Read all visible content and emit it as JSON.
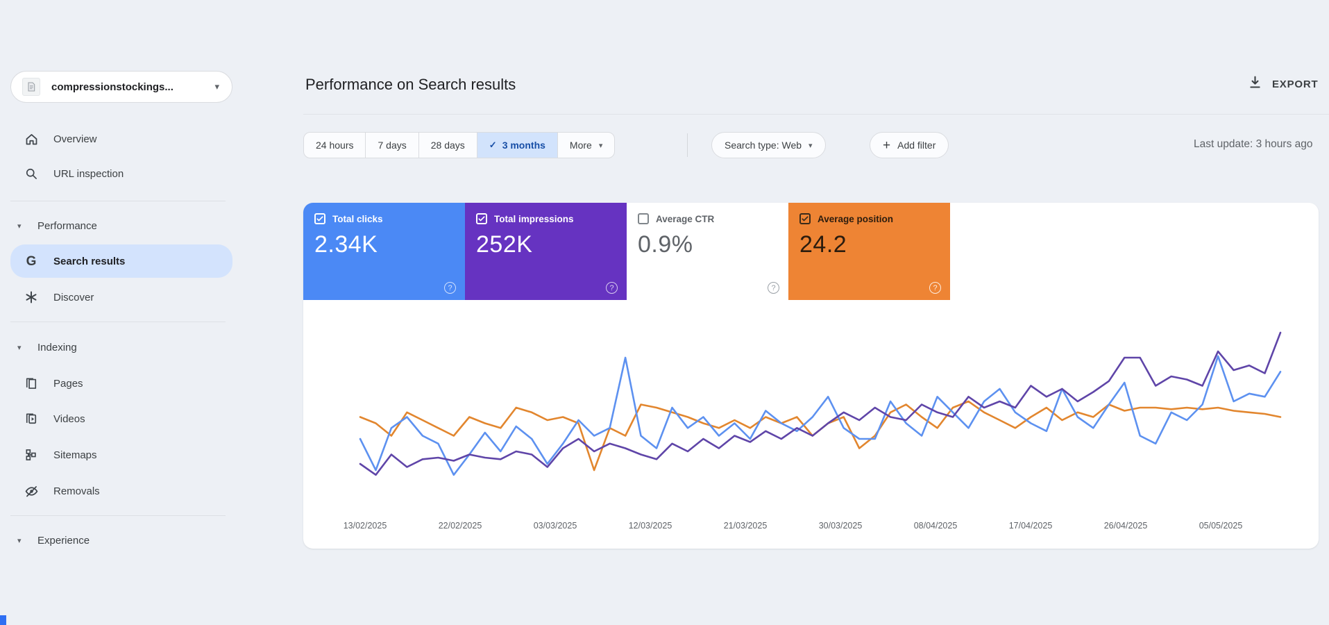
{
  "icons": {
    "caret_down": "▾",
    "check": "✓",
    "plus": "+",
    "help": "?"
  },
  "sidebar": {
    "property_label": "compressionstockings...",
    "overview": "Overview",
    "url_inspection": "URL inspection",
    "performance_header": "Performance",
    "search_results": "Search results",
    "g_glyph": "G",
    "discover": "Discover",
    "indexing_header": "Indexing",
    "pages": "Pages",
    "videos": "Videos",
    "sitemaps": "Sitemaps",
    "removals": "Removals",
    "experience_header": "Experience"
  },
  "header": {
    "title": "Performance on Search results",
    "export_label": "EXPORT",
    "last_update": "Last update: 3 hours ago"
  },
  "filters": {
    "range_24h": "24 hours",
    "range_7d": "7 days",
    "range_28d": "28 days",
    "range_3m": "3 months",
    "selected_range": "3 months",
    "more": "More",
    "search_type": "Search type: Web",
    "add_filter": "Add filter"
  },
  "metrics": [
    {
      "label": "Total clicks",
      "value": "2.34K",
      "checked": true,
      "bg": "#4b89f5",
      "fg": "#ffffff",
      "checkbox_color": "#ffffff",
      "help_color": "rgba(255,255,255,0.75)"
    },
    {
      "label": "Total impressions",
      "value": "252K",
      "checked": true,
      "bg": "#6633c1",
      "fg": "#ffffff",
      "checkbox_color": "#ffffff",
      "help_color": "rgba(255,255,255,0.75)"
    },
    {
      "label": "Average CTR",
      "value": "0.9%",
      "checked": false,
      "bg": "#ffffff",
      "fg": "#5f6368",
      "checkbox_color": "#80868b",
      "help_color": "#9aa0a6"
    },
    {
      "label": "Average position",
      "value": "24.2",
      "checked": true,
      "bg": "#ee8434",
      "fg": "#2b1c0e",
      "checkbox_color": "#3a2a1a",
      "help_color": "rgba(255,255,255,0.85)"
    }
  ],
  "chart_data": {
    "type": "line",
    "title": "Performance on Search results (3 months, daily points)",
    "x_tick_labels": [
      "13/02/2025",
      "22/02/2025",
      "03/03/2025",
      "12/03/2025",
      "21/03/2025",
      "30/03/2025",
      "08/04/2025",
      "17/04/2025",
      "26/04/2025",
      "05/05/2025"
    ],
    "x_range_note": "daily data from ~12/02/2025 to ~11/05/2025, ticks every 9 days",
    "y_axis_note": "no y-axis shown in chart; series values are relative units 0-100 estimated from pixel positions",
    "legend_note": "metric tiles above chart act as legend; Average CTR unchecked so no CTR line",
    "grid": false,
    "series": [
      {
        "name": "Total clicks",
        "total": "2.34K",
        "color": "#5d91f0",
        "values": [
          28,
          8,
          35,
          42,
          30,
          25,
          5,
          18,
          32,
          20,
          36,
          28,
          12,
          25,
          40,
          30,
          35,
          80,
          30,
          22,
          48,
          35,
          42,
          30,
          38,
          28,
          46,
          38,
          33,
          42,
          55,
          35,
          28,
          28,
          52,
          38,
          30,
          55,
          45,
          35,
          52,
          60,
          45,
          38,
          33,
          60,
          42,
          35,
          50,
          64,
          30,
          25,
          45,
          40,
          50,
          81,
          52,
          57,
          55,
          71
        ]
      },
      {
        "name": "Total impressions",
        "total": "252K",
        "color": "#5f45a8",
        "values": [
          12,
          5,
          18,
          10,
          15,
          16,
          14,
          18,
          16,
          15,
          20,
          18,
          10,
          22,
          28,
          20,
          25,
          22,
          18,
          15,
          25,
          20,
          28,
          22,
          30,
          26,
          33,
          28,
          35,
          30,
          38,
          45,
          40,
          48,
          42,
          40,
          50,
          45,
          42,
          55,
          48,
          52,
          48,
          62,
          55,
          60,
          52,
          58,
          65,
          80,
          80,
          62,
          68,
          66,
          62,
          84,
          72,
          75,
          70,
          96
        ]
      },
      {
        "name": "Average position",
        "total": "24.2",
        "color": "#e2862e",
        "values": [
          42,
          38,
          30,
          45,
          40,
          35,
          30,
          42,
          38,
          35,
          48,
          45,
          40,
          42,
          38,
          8,
          35,
          30,
          50,
          48,
          45,
          42,
          38,
          35,
          40,
          35,
          42,
          38,
          42,
          30,
          38,
          42,
          22,
          30,
          45,
          50,
          42,
          35,
          48,
          52,
          45,
          40,
          35,
          42,
          48,
          40,
          45,
          42,
          50,
          46,
          48,
          48,
          47,
          48,
          47,
          48,
          46,
          45,
          44,
          42
        ]
      }
    ]
  }
}
